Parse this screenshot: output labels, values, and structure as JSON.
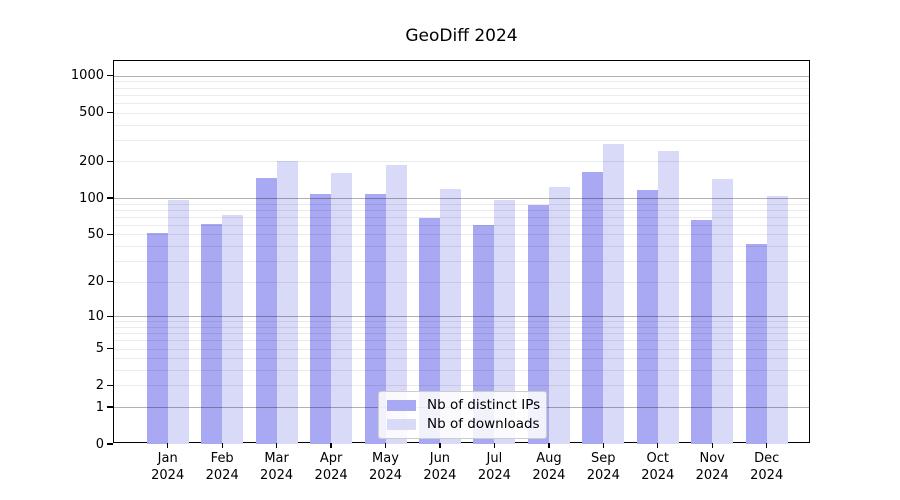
{
  "chart_data": {
    "type": "bar",
    "title": "GeoDiff 2024",
    "categories": [
      "Jan",
      "Feb",
      "Mar",
      "Apr",
      "May",
      "Jun",
      "Jul",
      "Aug",
      "Sep",
      "Oct",
      "Nov",
      "Dec"
    ],
    "year_suffix": "2024",
    "series": [
      {
        "name": "Nb of distinct IPs",
        "color": "#a9a8f2",
        "values": [
          51,
          61,
          145,
          108,
          109,
          68,
          60,
          88,
          164,
          116,
          66,
          42
        ]
      },
      {
        "name": "Nb of downloads",
        "color": "#d9d9f8",
        "values": [
          96,
          72,
          200,
          160,
          188,
          118,
          97,
          123,
          280,
          243,
          143,
          104
        ]
      }
    ],
    "yscale": "log1p",
    "yticks": [
      0,
      1,
      2,
      5,
      10,
      20,
      50,
      100,
      200,
      500,
      1000
    ],
    "ylim": [
      0,
      1320
    ],
    "grid": true,
    "legend_position": "lower center",
    "colors": {
      "major_grid": "rgba(0,0,0,0.30)",
      "minor_grid": "rgba(0,0,0,0.08)",
      "axis": "#000000",
      "text": "#000000"
    }
  }
}
